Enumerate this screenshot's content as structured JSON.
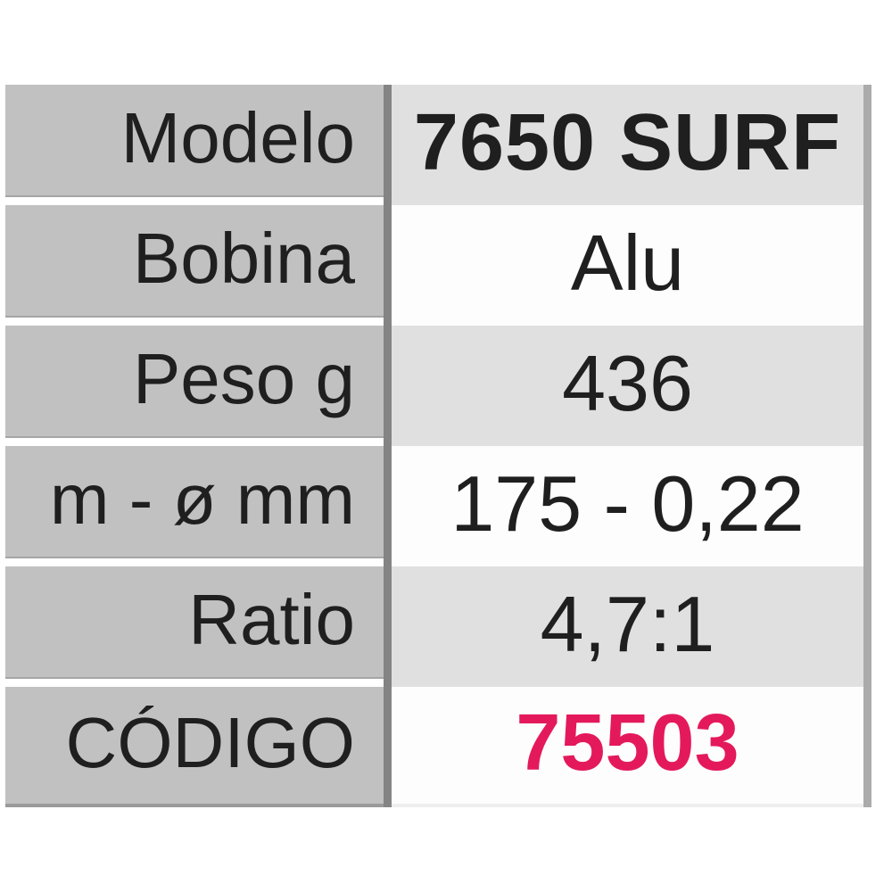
{
  "table": {
    "rows": [
      {
        "label": "Modelo",
        "value": "7650 SURF"
      },
      {
        "label": "Bobina",
        "value": "Alu"
      },
      {
        "label": "Peso g",
        "value": "436"
      },
      {
        "label": "m - ø mm",
        "value": "175 - 0,22"
      },
      {
        "label": "Ratio",
        "value": "4,7:1"
      },
      {
        "label": "CÓDIGO",
        "value": "75503"
      }
    ],
    "colors": {
      "label_cell_bg": "#c1c1c1",
      "value_cell_bg_alt": "#e0e0e0",
      "value_cell_bg": "#fdfdfd",
      "column_divider": "#848484",
      "right_border": "#ababab",
      "text": "#1f1f1f",
      "code_accent": "#e4195c"
    }
  }
}
